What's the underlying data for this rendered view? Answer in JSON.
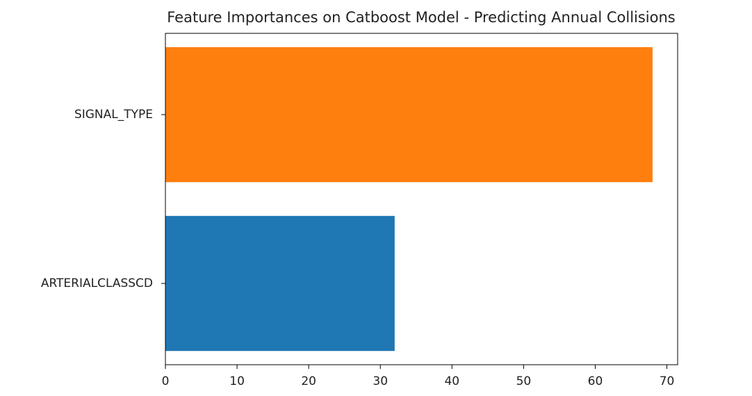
{
  "chart_data": {
    "type": "barh",
    "title": "Feature Importances on Catboost Model - Predicting Annual Collisions",
    "categories": [
      "ARTERIALCLASSCD",
      "SIGNAL_TYPE"
    ],
    "values": [
      32,
      68
    ],
    "colors": [
      "#1f77b4",
      "#ff7f0e"
    ],
    "xlim": [
      0,
      71.5
    ],
    "xticks": [
      0,
      10,
      20,
      30,
      40,
      50,
      60,
      70
    ],
    "grid": false
  }
}
